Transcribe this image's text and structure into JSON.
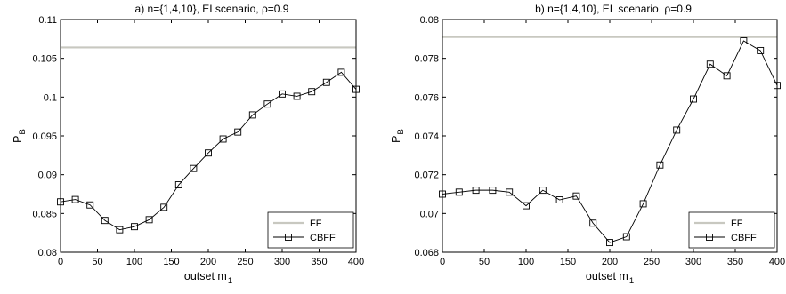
{
  "chart_data": [
    {
      "type": "line",
      "title": "a) n={1,4,10}, EI scenario, ρ=0.9",
      "xlabel": "outset m",
      "xlabel_sub": "1",
      "ylabel": "P",
      "ylabel_sub": "B",
      "xlim": [
        0,
        400
      ],
      "ylim": [
        0.08,
        0.11
      ],
      "xticks": [
        0,
        50,
        100,
        150,
        200,
        250,
        300,
        350,
        400
      ],
      "xtick_labels": [
        "0",
        "50",
        "100",
        "150",
        "200",
        "250",
        "300",
        "350",
        "400"
      ],
      "yticks": [
        0.08,
        0.085,
        0.09,
        0.095,
        0.1,
        0.105,
        0.11
      ],
      "ytick_labels": [
        "0.08",
        "0.085",
        "0.09",
        "0.095",
        "0.1",
        "0.105",
        "0.11"
      ],
      "legend_position": "bottom-right",
      "series": [
        {
          "name": "FF",
          "color": "#c8c8c0",
          "marker": "none",
          "x": [
            0,
            400
          ],
          "y": [
            0.1064,
            0.1064
          ]
        },
        {
          "name": "CBFF",
          "color": "#000000",
          "marker": "square",
          "x": [
            0,
            20,
            40,
            60,
            80,
            100,
            120,
            140,
            160,
            180,
            200,
            220,
            240,
            260,
            280,
            300,
            320,
            340,
            360,
            380,
            400
          ],
          "y": [
            0.0865,
            0.0868,
            0.0861,
            0.0841,
            0.0829,
            0.0833,
            0.0842,
            0.0858,
            0.0887,
            0.0908,
            0.0928,
            0.0946,
            0.0955,
            0.0977,
            0.0991,
            0.1004,
            0.1001,
            0.1007,
            0.1019,
            0.1032,
            0.101
          ]
        }
      ]
    },
    {
      "type": "line",
      "title": "b) n={1,4,10}, EL scenario, ρ=0.9",
      "xlabel": "outset m",
      "xlabel_sub": "1",
      "ylabel": "P",
      "ylabel_sub": "B",
      "xlim": [
        0,
        400
      ],
      "ylim": [
        0.068,
        0.08
      ],
      "xticks": [
        0,
        50,
        100,
        150,
        200,
        250,
        300,
        350,
        400
      ],
      "xtick_labels": [
        "0",
        "50",
        "100",
        "150",
        "200",
        "250",
        "300",
        "350",
        "400"
      ],
      "yticks": [
        0.068,
        0.07,
        0.072,
        0.074,
        0.076,
        0.078,
        0.08
      ],
      "ytick_labels": [
        "0.068",
        "0.07",
        "0.072",
        "0.074",
        "0.076",
        "0.078",
        "0.08"
      ],
      "legend_position": "bottom-right",
      "series": [
        {
          "name": "FF",
          "color": "#c8c8c0",
          "marker": "none",
          "x": [
            0,
            400
          ],
          "y": [
            0.0791,
            0.0791
          ]
        },
        {
          "name": "CBFF",
          "color": "#000000",
          "marker": "square",
          "x": [
            0,
            20,
            40,
            60,
            80,
            100,
            120,
            140,
            160,
            180,
            200,
            220,
            240,
            260,
            280,
            300,
            320,
            340,
            360,
            380,
            400
          ],
          "y": [
            0.071,
            0.0711,
            0.0712,
            0.0712,
            0.0711,
            0.0704,
            0.0712,
            0.0707,
            0.0709,
            0.0695,
            0.0685,
            0.0688,
            0.0705,
            0.0725,
            0.0743,
            0.0759,
            0.0777,
            0.0771,
            0.0789,
            0.0784,
            0.0766
          ]
        }
      ]
    }
  ]
}
